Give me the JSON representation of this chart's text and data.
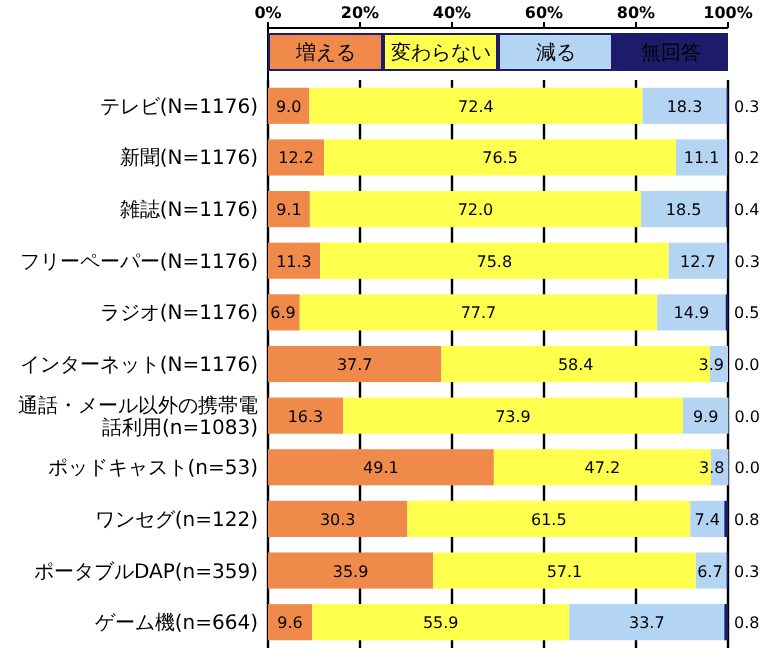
{
  "chart_data": {
    "type": "bar",
    "orientation": "horizontal",
    "stacked": true,
    "legend": "top",
    "grid": "x",
    "categories": [
      "テレビ(N=1176)",
      "新聞(N=1176)",
      "雑誌(N=1176)",
      "フリーペーパー(N=1176)",
      "ラジオ(N=1176)",
      "インターネット(N=1176)",
      "通話・メール以外の携帯電話利用(n=1083)",
      "ポッドキャスト(n=53)",
      "ワンセグ(n=122)",
      "ポータブルDAP(n=359)",
      "ゲーム機(n=664)"
    ],
    "xlim": [
      0,
      100
    ],
    "xticks": [
      {
        "value": 0,
        "label": "0%"
      },
      {
        "value": 20,
        "label": "20%"
      },
      {
        "value": 40,
        "label": "40%"
      },
      {
        "value": 60,
        "label": "60%"
      },
      {
        "value": 80,
        "label": "80%"
      },
      {
        "value": 100,
        "label": "100%"
      }
    ],
    "series": [
      {
        "name": "増える",
        "color": "#f08a4b",
        "values": [
          9.0,
          12.2,
          9.1,
          11.3,
          6.9,
          37.7,
          16.3,
          49.1,
          30.3,
          35.9,
          9.6
        ],
        "value_labels": [
          "9.0",
          "12.2",
          "9.1",
          "11.3",
          "6.9",
          "37.7",
          "16.3",
          "49.1",
          "30.3",
          "35.9",
          "9.6"
        ]
      },
      {
        "name": "変わらない",
        "color": "#ffff4d",
        "values": [
          72.4,
          76.5,
          72.0,
          75.8,
          77.7,
          58.4,
          73.9,
          47.2,
          61.5,
          57.1,
          55.9
        ],
        "value_labels": [
          "72.4",
          "76.5",
          "72.0",
          "75.8",
          "77.7",
          "58.4",
          "73.9",
          "47.2",
          "61.5",
          "57.1",
          "55.9"
        ]
      },
      {
        "name": "減る",
        "color": "#b4d4f4",
        "values": [
          18.3,
          11.1,
          18.5,
          12.7,
          14.9,
          3.9,
          9.9,
          3.8,
          7.4,
          6.7,
          33.7
        ],
        "value_labels": [
          "18.3",
          "11.1",
          "18.5",
          "12.7",
          "14.9",
          "3.9",
          "9.9",
          "3.8",
          "7.4",
          "6.7",
          "33.7"
        ]
      },
      {
        "name": "無回答",
        "color": "#1c1c6a",
        "values": [
          0.3,
          0.2,
          0.4,
          0.3,
          0.5,
          0.0,
          0.0,
          0.0,
          0.8,
          0.3,
          0.8
        ],
        "value_labels": [
          "0.3",
          "0.2",
          "0.4",
          "0.3",
          "0.5",
          "0.0",
          "0.0",
          "0.0",
          "0.8",
          "0.3",
          "0.8"
        ]
      }
    ]
  }
}
